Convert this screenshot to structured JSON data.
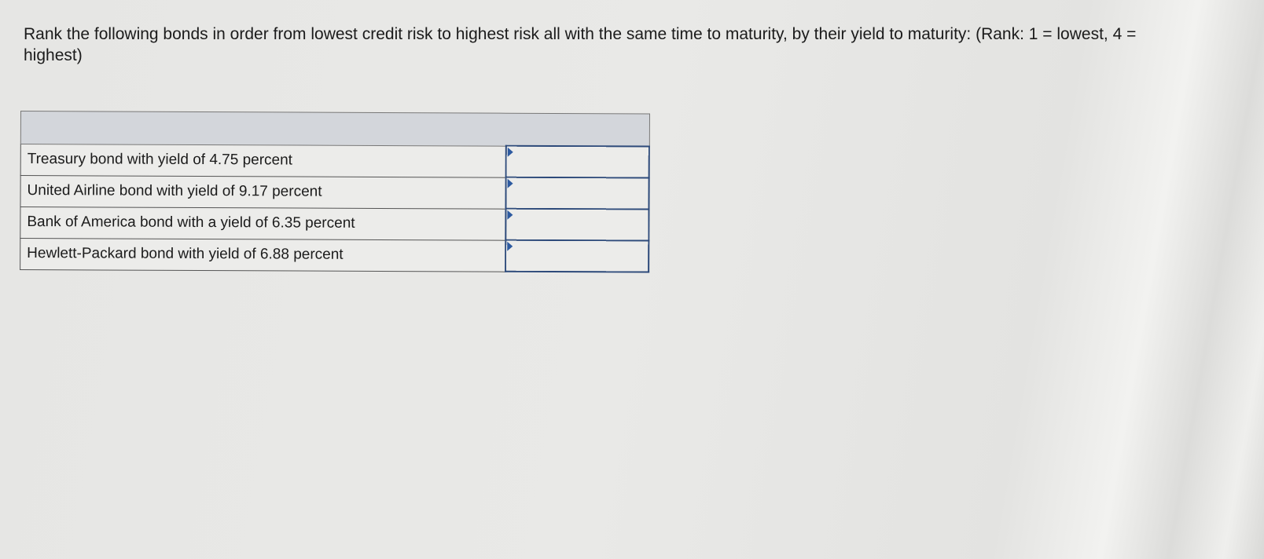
{
  "question": "Rank the following bonds in order from lowest credit risk to highest risk all with the same time to maturity, by their yield to maturity: (Rank: 1 = lowest, 4 = highest)",
  "table": {
    "rows": [
      {
        "label": "Treasury bond with yield of 4.75 percent",
        "rank": ""
      },
      {
        "label": "United Airline bond with yield of 9.17 percent",
        "rank": ""
      },
      {
        "label": "Bank of America bond with a yield of 6.35 percent",
        "rank": ""
      },
      {
        "label": "Hewlett-Packard bond with yield of 6.88 percent",
        "rank": ""
      }
    ]
  }
}
